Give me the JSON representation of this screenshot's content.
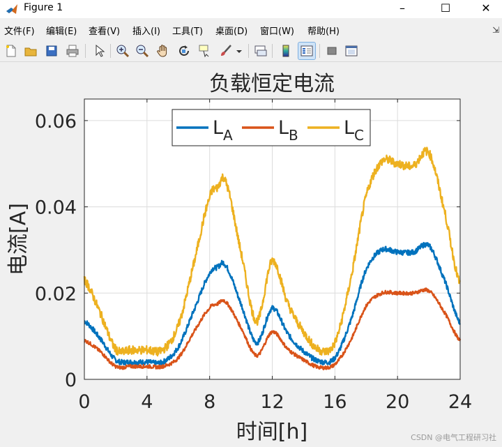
{
  "window": {
    "title": "Figure 1",
    "controls": {
      "minimize": "–",
      "maximize": "☐",
      "close": "✕"
    }
  },
  "menubar": {
    "items": [
      "文件(F)",
      "编辑(E)",
      "查看(V)",
      "插入(I)",
      "工具(T)",
      "桌面(D)",
      "窗口(W)",
      "帮助(H)"
    ]
  },
  "toolbar": {
    "icons": [
      "new-figure-icon",
      "open-file-icon",
      "save-icon",
      "print-icon",
      "pointer-icon",
      "zoom-in-icon",
      "zoom-out-icon",
      "pan-icon",
      "rotate-3d-icon",
      "data-cursor-icon",
      "brush-icon",
      "brush-dropdown-icon",
      "link-plot-icon",
      "colorbar-icon",
      "legend-icon",
      "hide-plot-tools-icon",
      "show-plot-tools-icon"
    ]
  },
  "chart_data": {
    "type": "line",
    "title": "负载恒定电流",
    "xlabel": "时间[h]",
    "ylabel": "电流[A]",
    "xlim": [
      0,
      24
    ],
    "ylim": [
      0,
      0.065
    ],
    "xticks": [
      "0",
      "4",
      "8",
      "12",
      "16",
      "20",
      "24"
    ],
    "yticks": [
      "0",
      "0.02",
      "0.04",
      "0.06"
    ],
    "grid": true,
    "legend": {
      "placement": "top-center",
      "orientation": "horizontal"
    },
    "x": [
      0,
      1,
      2,
      3,
      4,
      5,
      6,
      7,
      8,
      8.5,
      9,
      10,
      11,
      12,
      13,
      14,
      15,
      16,
      17,
      18,
      19,
      20,
      21,
      22,
      23,
      24
    ],
    "series": [
      {
        "name": "L_A",
        "label_main": "L",
        "label_sub": "A",
        "color": "#0072BD",
        "noise": 0.0006,
        "values": [
          0.0135,
          0.0095,
          0.0045,
          0.004,
          0.004,
          0.004,
          0.0075,
          0.016,
          0.0245,
          0.026,
          0.0265,
          0.0175,
          0.0085,
          0.0165,
          0.0105,
          0.0065,
          0.0042,
          0.005,
          0.0135,
          0.0255,
          0.03,
          0.0295,
          0.0295,
          0.031,
          0.023,
          0.013
        ]
      },
      {
        "name": "L_B",
        "label_main": "L",
        "label_sub": "B",
        "color": "#D95319",
        "noise": 0.0004,
        "values": [
          0.009,
          0.0065,
          0.003,
          0.003,
          0.003,
          0.003,
          0.005,
          0.011,
          0.0165,
          0.0175,
          0.018,
          0.012,
          0.0055,
          0.011,
          0.007,
          0.0045,
          0.0028,
          0.0035,
          0.009,
          0.017,
          0.02,
          0.02,
          0.02,
          0.0205,
          0.0155,
          0.009
        ]
      },
      {
        "name": "L_C",
        "label_main": "L",
        "label_sub": "C",
        "color": "#EDB120",
        "noise": 0.001,
        "values": [
          0.023,
          0.0155,
          0.007,
          0.0068,
          0.0068,
          0.0068,
          0.0125,
          0.027,
          0.042,
          0.0445,
          0.046,
          0.0295,
          0.0135,
          0.0275,
          0.0175,
          0.011,
          0.0068,
          0.0085,
          0.023,
          0.0425,
          0.0505,
          0.05,
          0.0495,
          0.0525,
          0.039,
          0.022
        ]
      }
    ]
  },
  "watermark": "CSDN @电气工程研习社"
}
